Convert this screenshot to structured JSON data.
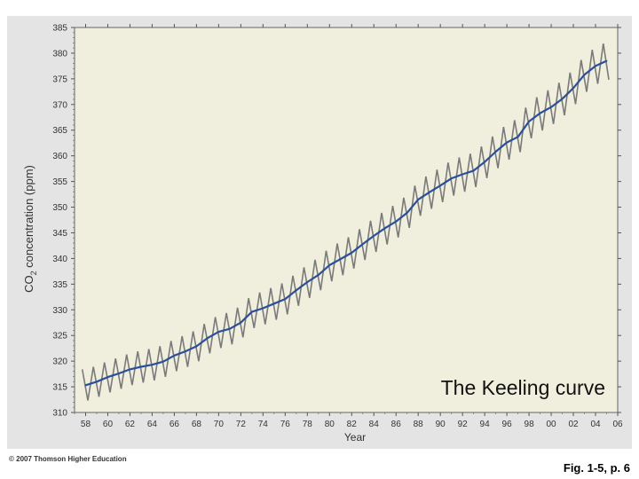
{
  "chart_data": {
    "type": "line",
    "title": "",
    "annotation": "The Keeling curve",
    "xlabel": "Year",
    "ylabel_prefix": "CO",
    "ylabel_sub": "2",
    "ylabel_suffix": " concentration (ppm)",
    "xlim": [
      1957,
      2006
    ],
    "ylim": [
      310,
      385
    ],
    "xticks": [
      1958,
      1960,
      1962,
      1964,
      1966,
      1968,
      1970,
      1972,
      1974,
      1976,
      1978,
      1980,
      1982,
      1984,
      1986,
      1988,
      1990,
      1992,
      1994,
      1996,
      1998,
      2000,
      2002,
      2004,
      2006
    ],
    "xtick_labels": [
      "58",
      "60",
      "62",
      "64",
      "66",
      "68",
      "70",
      "72",
      "74",
      "76",
      "78",
      "80",
      "82",
      "84",
      "86",
      "88",
      "90",
      "92",
      "94",
      "96",
      "98",
      "00",
      "02",
      "04",
      "06"
    ],
    "yticks": [
      310,
      315,
      320,
      325,
      330,
      335,
      340,
      345,
      350,
      355,
      360,
      365,
      370,
      375,
      380,
      385
    ],
    "grid": false,
    "series": [
      {
        "role": "annual-mean",
        "color": "#2c4f9a",
        "x": [
          1958,
          1959,
          1960,
          1961,
          1962,
          1963,
          1964,
          1965,
          1966,
          1967,
          1968,
          1969,
          1970,
          1971,
          1972,
          1973,
          1974,
          1975,
          1976,
          1977,
          1978,
          1979,
          1980,
          1981,
          1982,
          1983,
          1984,
          1985,
          1986,
          1987,
          1988,
          1989,
          1990,
          1991,
          1992,
          1993,
          1994,
          1995,
          1996,
          1997,
          1998,
          1999,
          2000,
          2001,
          2002,
          2003,
          2004,
          2005
        ],
        "values": [
          315.3,
          316.0,
          316.9,
          317.6,
          318.4,
          318.9,
          319.3,
          319.9,
          321.1,
          321.9,
          322.9,
          324.5,
          325.7,
          326.3,
          327.5,
          329.6,
          330.3,
          331.2,
          332.1,
          333.8,
          335.4,
          336.8,
          338.7,
          339.9,
          341.1,
          342.8,
          344.4,
          345.9,
          347.2,
          348.9,
          351.5,
          352.9,
          354.2,
          355.6,
          356.4,
          357.1,
          358.8,
          360.8,
          362.6,
          363.7,
          366.7,
          368.3,
          369.5,
          371.1,
          373.2,
          375.8,
          377.5,
          378.5
        ]
      },
      {
        "role": "monthly-seasonal",
        "color": "#7a7a7a",
        "seasonal_amplitude": 6.2
      }
    ]
  },
  "footer": {
    "copyright": "© 2007 Thomson Higher Education",
    "caption": "Fig. 1-5, p. 6"
  },
  "colors": {
    "plot_background": "#f0eedc",
    "frame_background": "#e4e4e4",
    "axis_text": "#333333"
  }
}
